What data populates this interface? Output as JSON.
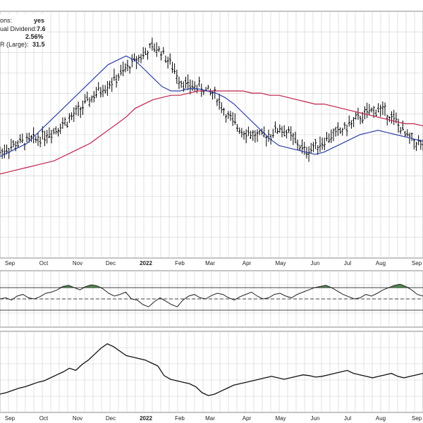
{
  "info_box": {
    "rows": [
      {
        "label": "ons:",
        "value": "yes"
      },
      {
        "label": "ual Dividend:",
        "value": "7.6"
      },
      {
        "label": "",
        "value": "2.56%"
      },
      {
        "label": "R (Large):",
        "value": "31.5"
      }
    ]
  },
  "colors": {
    "price": "#000000",
    "ma_short": "#2f3fa8",
    "ma_long": "#c0224a",
    "grid": "#cfcfcf",
    "osc_fill_up": "#4a8a4a",
    "osc_fill_down": "#c0504d"
  },
  "chart_data": [
    {
      "type": "line",
      "panel": "price",
      "x_axis_labels": [
        "Sep",
        "Oct",
        "Nov",
        "Dec",
        "2022",
        "Feb",
        "Mar",
        "Apr",
        "May",
        "Jun",
        "Jul",
        "Aug",
        "Sep"
      ],
      "grid": true,
      "ylim": [
        0,
        100
      ],
      "series": [
        {
          "values": [
            42,
            44,
            46,
            47,
            48,
            50,
            52,
            55,
            58,
            62,
            66,
            70,
            73,
            76,
            80,
            84,
            87,
            90,
            88,
            82,
            75,
            72,
            72,
            70,
            68,
            60,
            55,
            52,
            50,
            49,
            50,
            53,
            51,
            46,
            42,
            45,
            47,
            50,
            52,
            55,
            58,
            60,
            62,
            60,
            56,
            50,
            47,
            45
          ]
        },
        {
          "values": [
            40,
            42,
            44,
            46,
            50,
            54,
            58,
            62,
            66,
            70,
            74,
            78,
            82,
            84,
            86,
            84,
            80,
            76,
            72,
            70,
            70,
            71,
            71,
            70,
            69,
            67,
            64,
            60,
            56,
            52,
            48,
            45,
            44,
            43,
            42,
            41,
            42,
            44,
            46,
            48,
            50,
            51,
            52,
            51,
            50,
            49,
            48,
            47
          ]
        },
        {
          "values": [
            32,
            33,
            34,
            35,
            36,
            37,
            38,
            40,
            42,
            44,
            46,
            49,
            52,
            55,
            58,
            62,
            64,
            66,
            67,
            68,
            68,
            69,
            70,
            70,
            70,
            70,
            70,
            70,
            69,
            69,
            68,
            68,
            67,
            66,
            65,
            64,
            64,
            63,
            62,
            61,
            60,
            59,
            58,
            57,
            56,
            55,
            55,
            54
          ]
        }
      ]
    },
    {
      "type": "line",
      "panel": "oscillator",
      "grid": true,
      "ylim": [
        0,
        100
      ],
      "reference_levels": [
        70,
        50,
        30
      ],
      "series": [
        {
          "values": [
            50,
            52,
            48,
            55,
            58,
            52,
            50,
            54,
            60,
            62,
            66,
            72,
            74,
            70,
            66,
            72,
            75,
            73,
            68,
            60,
            55,
            58,
            62,
            50,
            48,
            40,
            36,
            45,
            52,
            46,
            40,
            36,
            48,
            55,
            58,
            52,
            50,
            56,
            60,
            58,
            52,
            48,
            54,
            58,
            62,
            55,
            50,
            52,
            58,
            60,
            55,
            52,
            58,
            62,
            66,
            70,
            72,
            74,
            70,
            64,
            58,
            54,
            50,
            52,
            58,
            55,
            60,
            66,
            70,
            74,
            76,
            72,
            66,
            58,
            55
          ]
        }
      ]
    },
    {
      "type": "line",
      "panel": "relative_strength",
      "x_axis_labels": [
        "Sep",
        "Oct",
        "Nov",
        "Dec",
        "2022",
        "Feb",
        "Mar",
        "Apr",
        "May",
        "Jun",
        "Jul",
        "Aug",
        "Sep"
      ],
      "grid": true,
      "ylim": [
        0,
        100
      ],
      "series": [
        {
          "values": [
            20,
            22,
            25,
            28,
            30,
            33,
            36,
            38,
            42,
            46,
            50,
            55,
            52,
            60,
            66,
            74,
            82,
            88,
            84,
            78,
            72,
            70,
            68,
            66,
            62,
            58,
            45,
            40,
            38,
            36,
            34,
            30,
            22,
            18,
            20,
            24,
            28,
            32,
            34,
            36,
            38,
            40,
            42,
            44,
            42,
            40,
            42,
            44,
            46,
            45,
            43,
            44,
            46,
            48,
            50,
            52,
            48,
            46,
            44,
            42,
            44,
            46,
            48,
            44,
            42,
            44,
            46,
            48
          ]
        }
      ]
    }
  ]
}
